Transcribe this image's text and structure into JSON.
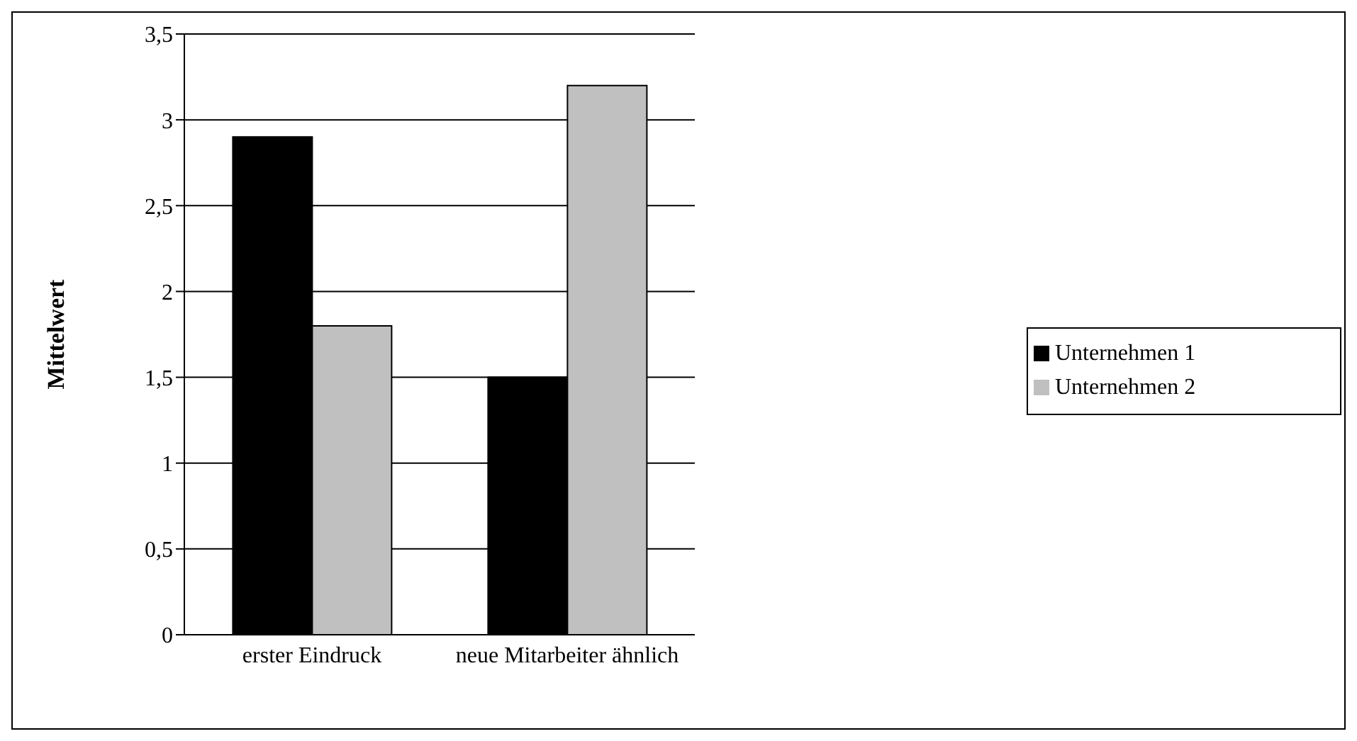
{
  "chart_data": {
    "type": "bar",
    "ylabel": "Mittelwert",
    "categories": [
      "erster Eindruck",
      "neue Mitarbeiter ähnlich"
    ],
    "series": [
      {
        "name": "Unternehmen 1",
        "color": "#000000",
        "values": [
          2.9,
          1.5
        ]
      },
      {
        "name": "Unternehmen 2",
        "color": "#c0c0c0",
        "values": [
          1.8,
          3.2
        ]
      }
    ],
    "ylim": [
      0,
      3.5
    ],
    "yticks": [
      0,
      {
        "value": 0.5,
        "label": "0,5"
      },
      1,
      {
        "value": 1.5,
        "label": "1,5"
      },
      2,
      {
        "value": 2.5,
        "label": "2,5"
      },
      3,
      {
        "value": 3.5,
        "label": "3,5"
      }
    ],
    "grid": "y",
    "legend": "right"
  }
}
